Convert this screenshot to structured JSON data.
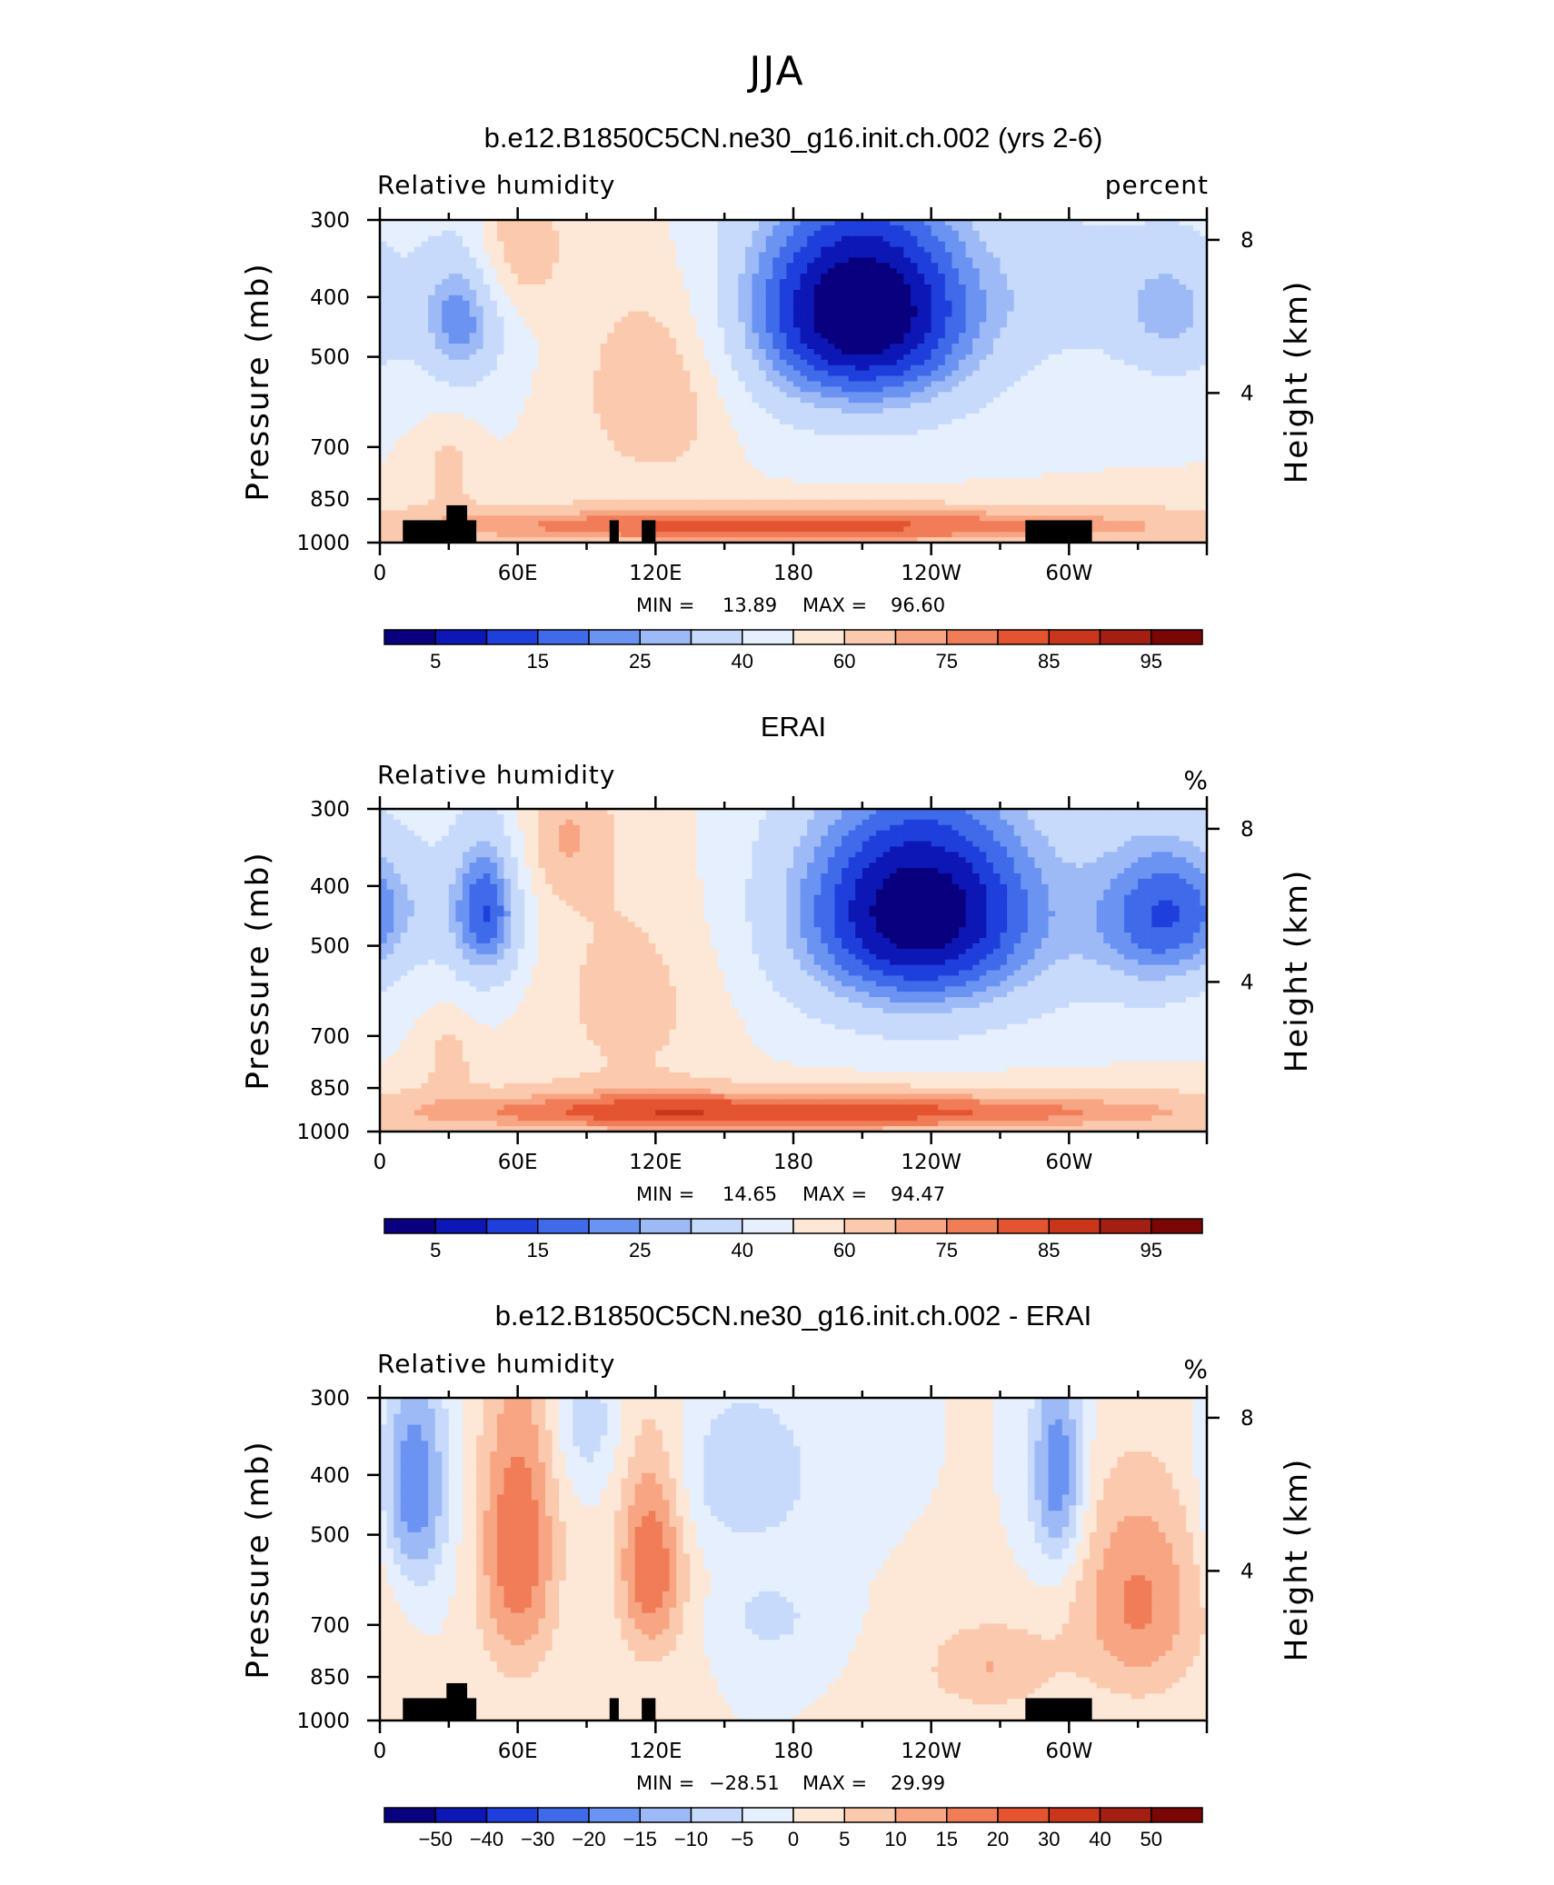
{
  "figure_title": "JJA",
  "colors": {
    "rh_levels": [
      "#08007f",
      "#0c17b5",
      "#1f3fdc",
      "#3f6ae9",
      "#6a93f2",
      "#9dbaf6",
      "#c7dafb",
      "#e5effd",
      "#fde8d8",
      "#fbc9ad",
      "#f7a582",
      "#f07c58",
      "#e45430",
      "#c9361c",
      "#a41f13",
      "#7a0606"
    ],
    "land": "#000000"
  },
  "chart_data": [
    {
      "type": "heatmap",
      "title": "b.e12.B1850C5CN.ne30_g16.init.ch.002 (yrs 2-6)",
      "left_label": "Relative humidity",
      "right_label": "percent",
      "ylabel": "Pressure (mb)",
      "ylabel2": "Height (km)",
      "x_ticks": [
        "0",
        "60E",
        "120E",
        "180",
        "120W",
        "60W"
      ],
      "x_tick_values": [
        0,
        60,
        120,
        180,
        240,
        300
      ],
      "xlim": [
        0,
        360
      ],
      "y_ticks": [
        "300",
        "400",
        "500",
        "700",
        "850",
        "1000"
      ],
      "y_tick_values": [
        300,
        400,
        500,
        700,
        850,
        1000
      ],
      "ylim": [
        300,
        1000
      ],
      "height_ticks": [
        "8",
        "4"
      ],
      "height_tick_values": [
        8,
        4
      ],
      "min_label": "MIN =",
      "min_value": "13.89",
      "max_label": "MAX =",
      "max_value": "96.60",
      "colorbar_labels": [
        "5",
        "15",
        "25",
        "40",
        "60",
        "75",
        "85",
        "95"
      ],
      "levels": [
        5,
        10,
        15,
        20,
        25,
        30,
        40,
        50,
        60,
        70,
        75,
        80,
        85,
        90,
        95
      ],
      "centers": [
        [
          38,
          430,
          400
        ],
        [
          250,
          410,
          160
        ],
        [
          290,
          300,
          400
        ],
        [
          120,
          950,
          550
        ],
        [
          10,
          880,
          650
        ],
        [
          290,
          880,
          560
        ]
      ],
      "features": [
        {
          "lon": 210,
          "p": 420,
          "amp": -52,
          "slon": 42,
          "sp": 140
        },
        {
          "lon": 36,
          "p": 430,
          "amp": -28,
          "slon": 14,
          "sp": 90
        },
        {
          "lon": 345,
          "p": 420,
          "amp": -22,
          "slon": 20,
          "sp": 90
        },
        {
          "lon": 300,
          "p": 380,
          "amp": -10,
          "slon": 20,
          "sp": 80
        },
        {
          "lon": 120,
          "p": 560,
          "amp": 22,
          "slon": 22,
          "sp": 150
        },
        {
          "lon": 60,
          "p": 330,
          "amp": 20,
          "slon": 14,
          "sp": 60
        },
        {
          "lon": 180,
          "p": 940,
          "amp": 32,
          "slon": 160,
          "sp": 55
        },
        {
          "lon": 30,
          "p": 760,
          "amp": 15,
          "slon": 8,
          "sp": 80
        }
      ],
      "base": 50,
      "land_blocks": [
        {
          "lon0": 10,
          "lon1": 42,
          "p_top": 920
        },
        {
          "lon0": 29,
          "lon1": 38,
          "p_top": 870
        },
        {
          "lon0": 100,
          "lon1": 104,
          "p_top": 920
        },
        {
          "lon0": 114,
          "lon1": 120,
          "p_top": 920
        },
        {
          "lon0": 281,
          "lon1": 310,
          "p_top": 920
        }
      ]
    },
    {
      "type": "heatmap",
      "title": "ERAI",
      "left_label": "Relative humidity",
      "right_label": "%",
      "ylabel": "Pressure (mb)",
      "ylabel2": "Height (km)",
      "x_ticks": [
        "0",
        "60E",
        "120E",
        "180",
        "120W",
        "60W"
      ],
      "x_tick_values": [
        0,
        60,
        120,
        180,
        240,
        300
      ],
      "xlim": [
        0,
        360
      ],
      "y_ticks": [
        "300",
        "400",
        "500",
        "700",
        "850",
        "1000"
      ],
      "y_tick_values": [
        300,
        400,
        500,
        700,
        850,
        1000
      ],
      "ylim": [
        300,
        1000
      ],
      "height_ticks": [
        "8",
        "4"
      ],
      "height_tick_values": [
        8,
        4
      ],
      "min_label": "MIN =",
      "min_value": "14.65",
      "max_label": "MAX =",
      "max_value": "94.47",
      "colorbar_labels": [
        "5",
        "15",
        "25",
        "40",
        "60",
        "75",
        "85",
        "95"
      ],
      "levels": [
        5,
        10,
        15,
        20,
        25,
        30,
        40,
        50,
        60,
        70,
        75,
        80,
        85,
        90,
        95
      ],
      "features": [
        {
          "lon": 235,
          "p": 440,
          "amp": -50,
          "slon": 45,
          "sp": 150
        },
        {
          "lon": 47,
          "p": 440,
          "amp": -35,
          "slon": 12,
          "sp": 100
        },
        {
          "lon": 340,
          "p": 450,
          "amp": -30,
          "slon": 22,
          "sp": 110
        },
        {
          "lon": 10,
          "p": 430,
          "amp": -10,
          "slon": 18,
          "sp": 80
        },
        {
          "lon": 110,
          "p": 600,
          "amp": 14,
          "slon": 30,
          "sp": 200
        },
        {
          "lon": 80,
          "p": 330,
          "amp": 18,
          "slon": 14,
          "sp": 60
        },
        {
          "lon": 180,
          "p": 930,
          "amp": 34,
          "slon": 160,
          "sp": 60
        },
        {
          "lon": 30,
          "p": 760,
          "amp": 14,
          "slon": 8,
          "sp": 80
        }
      ],
      "base": 50,
      "land_blocks": []
    },
    {
      "type": "heatmap",
      "title": "b.e12.B1850C5CN.ne30_g16.init.ch.002 - ERAI",
      "left_label": "Relative humidity",
      "right_label": "%",
      "ylabel": "Pressure (mb)",
      "ylabel2": "Height (km)",
      "x_ticks": [
        "0",
        "60E",
        "120E",
        "180",
        "120W",
        "60W"
      ],
      "x_tick_values": [
        0,
        60,
        120,
        180,
        240,
        300
      ],
      "xlim": [
        0,
        360
      ],
      "y_ticks": [
        "300",
        "400",
        "500",
        "700",
        "850",
        "1000"
      ],
      "y_tick_values": [
        300,
        400,
        500,
        700,
        850,
        1000
      ],
      "ylim": [
        300,
        1000
      ],
      "height_ticks": [
        "8",
        "4"
      ],
      "height_tick_values": [
        8,
        4
      ],
      "min_label": "MIN =",
      "min_value": "−28.51",
      "max_label": "MAX =",
      "max_value": "29.99",
      "colorbar_labels": [
        "−50",
        "−40",
        "−30",
        "−20",
        "−15",
        "−10",
        "−5",
        "0",
        "5",
        "10",
        "15",
        "20",
        "30",
        "40",
        "50"
      ],
      "levels": [
        -50,
        -40,
        -30,
        -20,
        -15,
        -10,
        -5,
        0,
        5,
        10,
        15,
        20,
        30,
        40,
        50
      ],
      "features": [
        {
          "lon": 15,
          "p": 420,
          "amp": -20,
          "slon": 10,
          "sp": 120
        },
        {
          "lon": 60,
          "p": 520,
          "amp": 20,
          "slon": 12,
          "sp": 200
        },
        {
          "lon": 118,
          "p": 560,
          "amp": 20,
          "slon": 10,
          "sp": 150
        },
        {
          "lon": 160,
          "p": 400,
          "amp": -10,
          "slon": 20,
          "sp": 80
        },
        {
          "lon": 295,
          "p": 400,
          "amp": -20,
          "slon": 8,
          "sp": 110
        },
        {
          "lon": 330,
          "p": 640,
          "amp": 16,
          "slon": 20,
          "sp": 180
        },
        {
          "lon": 265,
          "p": 820,
          "amp": 10,
          "slon": 20,
          "sp": 100
        },
        {
          "lon": 170,
          "p": 680,
          "amp": -7,
          "slon": 14,
          "sp": 70
        },
        {
          "lon": 90,
          "p": 330,
          "amp": -8,
          "slon": 10,
          "sp": 60
        }
      ],
      "base": 0,
      "land_blocks": [
        {
          "lon0": 10,
          "lon1": 42,
          "p_top": 920
        },
        {
          "lon0": 29,
          "lon1": 38,
          "p_top": 870
        },
        {
          "lon0": 100,
          "lon1": 104,
          "p_top": 920
        },
        {
          "lon0": 114,
          "lon1": 120,
          "p_top": 920
        },
        {
          "lon0": 281,
          "lon1": 310,
          "p_top": 920
        }
      ]
    }
  ]
}
